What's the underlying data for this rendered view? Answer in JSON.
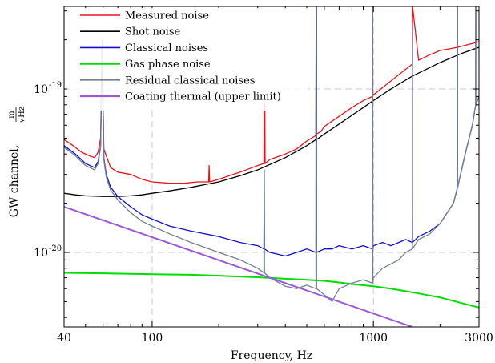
{
  "chart_data": {
    "type": "line",
    "xlabel": "Frequency, Hz",
    "ylabel": "GW channel, m/√Hz",
    "ylabel_main": "GW channel, ",
    "ylabel_unit_num": "m",
    "ylabel_unit_den": "√Hz",
    "x_scale": "log",
    "y_scale": "log",
    "xlim": [
      40,
      3000
    ],
    "ylim": [
      3.5e-21,
      3.2e-19
    ],
    "xticks": [
      {
        "value": 40,
        "label": "40"
      },
      {
        "value": 100,
        "label": "100"
      },
      {
        "value": 1000,
        "label": "1000"
      },
      {
        "value": 3000,
        "label": "3000"
      }
    ],
    "yticks": [
      {
        "value": 1e-20,
        "label_base": "10",
        "label_exp": "-20"
      },
      {
        "value": 1e-19,
        "label_base": "10",
        "label_exp": "-19"
      }
    ],
    "grid": "dashed, major decades",
    "legend_position": "top-left",
    "series": [
      {
        "name": "Measured noise",
        "color": "#e8141b",
        "x": [
          40,
          44,
          48,
          52,
          55,
          57,
          58.5,
          59.5,
          60.5,
          62,
          65,
          70,
          80,
          90,
          100,
          120,
          140,
          160,
          180,
          181,
          182,
          200,
          250,
          300,
          320,
          321,
          322,
          323,
          324,
          340,
          400,
          450,
          500,
          550,
          551,
          552,
          553,
          554,
          580,
          600,
          700,
          800,
          900,
          990,
          991,
          992,
          993,
          994,
          1000,
          1050,
          1100,
          1200,
          1300,
          1400,
          1500,
          1501,
          1502,
          1503,
          1600,
          1800,
          2000,
          2300,
          2400,
          2401,
          2402,
          2600,
          2800,
          2900,
          2901,
          2902,
          3000
        ],
        "y": [
          4.9e-20,
          4.5e-20,
          4.1e-20,
          3.9e-20,
          3.8e-20,
          4.1e-20,
          5e-20,
          2e-19,
          4.3e-20,
          3.9e-20,
          3.3e-20,
          3.1e-20,
          3e-20,
          2.8e-20,
          2.7e-20,
          2.65e-20,
          2.65e-20,
          2.7e-20,
          2.7e-20,
          3.4e-20,
          2.7e-20,
          2.8e-20,
          3.1e-20,
          3.4e-20,
          3.5e-20,
          9e-20,
          3.5e-20,
          8e-20,
          3.5e-20,
          3.7e-20,
          4e-20,
          4.3e-20,
          4.8e-20,
          5.2e-20,
          3.2e-19,
          3.2e-19,
          3.2e-19,
          5.3e-20,
          5.5e-20,
          5.9e-20,
          6.8e-20,
          7.7e-20,
          8.5e-20,
          9e-20,
          3.2e-19,
          3.2e-19,
          3.2e-19,
          9.1e-20,
          9.2e-20,
          9.7e-20,
          1.02e-19,
          1.12e-19,
          1.22e-19,
          1.32e-19,
          1.42e-19,
          3.2e-19,
          1.42e-19,
          3.2e-19,
          1.5e-19,
          1.62e-19,
          1.72e-19,
          1.78e-19,
          1.8e-19,
          3.2e-19,
          1.8e-19,
          1.85e-19,
          1.9e-19,
          1.92e-19,
          3.2e-19,
          1.92e-19,
          1.95e-19
        ]
      },
      {
        "name": "Shot noise",
        "color": "#000000",
        "x": [
          40,
          45,
          50,
          60,
          70,
          80,
          90,
          100,
          120,
          150,
          200,
          250,
          300,
          400,
          500,
          550,
          551,
          552,
          553,
          554,
          600,
          700,
          800,
          900,
          1000,
          1200,
          1500,
          2000,
          2500,
          3000
        ],
        "y": [
          2.3e-20,
          2.25e-20,
          2.22e-20,
          2.2e-20,
          2.2e-20,
          2.22e-20,
          2.25e-20,
          2.3e-20,
          2.38e-20,
          2.5e-20,
          2.7e-20,
          2.95e-20,
          3.2e-20,
          3.8e-20,
          4.5e-20,
          4.9e-20,
          3.2e-19,
          3.2e-19,
          3.2e-19,
          4.9e-20,
          5.3e-20,
          6.1e-20,
          6.9e-20,
          7.7e-20,
          8.5e-20,
          1e-19,
          1.2e-19,
          1.45e-19,
          1.65e-19,
          1.8e-19
        ]
      },
      {
        "name": "Classical noises",
        "color": "#1010cc",
        "x": [
          40,
          45,
          50,
          55,
          57,
          58.5,
          59.5,
          60.5,
          62,
          65,
          70,
          80,
          90,
          100,
          120,
          150,
          200,
          250,
          300,
          320,
          321,
          322,
          340,
          400,
          450,
          500,
          550,
          551,
          552,
          553,
          554,
          600,
          650,
          700,
          800,
          900,
          990,
          991,
          992,
          993,
          994,
          1000,
          1100,
          1200,
          1300,
          1400,
          1500,
          1501,
          1502,
          1600,
          1800,
          2000,
          2300,
          2400,
          2401,
          2402,
          2600,
          2800,
          2900,
          2901,
          2902,
          3000
        ],
        "y": [
          4.5e-20,
          4e-20,
          3.5e-20,
          3.3e-20,
          3.6e-20,
          4.5e-20,
          1.9e-19,
          3.8e-20,
          3e-20,
          2.5e-20,
          2.2e-20,
          1.9e-20,
          1.7e-20,
          1.6e-20,
          1.45e-20,
          1.35e-20,
          1.25e-20,
          1.15e-20,
          1.1e-20,
          1.05e-20,
          3.2e-20,
          1.05e-20,
          1e-20,
          9.5e-21,
          1e-20,
          1.05e-20,
          1e-20,
          3.2e-19,
          3.2e-19,
          3.2e-19,
          1e-20,
          1.05e-20,
          1.05e-20,
          1.1e-20,
          1.05e-20,
          1.1e-20,
          1.05e-20,
          3.2e-19,
          3.2e-19,
          3.2e-19,
          1.05e-20,
          1.1e-20,
          1.15e-20,
          1.1e-20,
          1.15e-20,
          1.2e-20,
          1.15e-20,
          2.5e-19,
          1.15e-20,
          1.25e-20,
          1.35e-20,
          1.5e-20,
          2e-20,
          2.5e-20,
          3.2e-19,
          2.5e-20,
          4e-20,
          6e-20,
          8e-20,
          3.2e-19,
          8e-20,
          9e-20
        ]
      },
      {
        "name": "Gas phase noise",
        "color": "#00dd00",
        "x": [
          40,
          60,
          80,
          100,
          150,
          200,
          300,
          400,
          500,
          600,
          700,
          800,
          1000,
          1200,
          1500,
          2000,
          2500,
          3000
        ],
        "y": [
          7.5e-21,
          7.45e-21,
          7.4e-21,
          7.35e-21,
          7.3e-21,
          7.2e-21,
          7.05e-21,
          6.9e-21,
          6.8e-21,
          6.7e-21,
          6.55e-21,
          6.4e-21,
          6.2e-21,
          6e-21,
          5.7e-21,
          5.3e-21,
          4.9e-21,
          4.6e-21
        ]
      },
      {
        "name": "Residual classical noises",
        "color": "#708090",
        "x": [
          40,
          45,
          50,
          55,
          57,
          58.5,
          59.5,
          60.5,
          62,
          65,
          70,
          80,
          90,
          100,
          120,
          150,
          200,
          250,
          300,
          320,
          321,
          322,
          340,
          400,
          450,
          500,
          550,
          551,
          552,
          553,
          554,
          600,
          650,
          700,
          800,
          900,
          990,
          991,
          992,
          993,
          994,
          1000,
          1100,
          1200,
          1300,
          1400,
          1500,
          1501,
          1502,
          1600,
          1800,
          2000,
          2300,
          2400,
          2401,
          2402,
          2600,
          2800,
          2900,
          2901,
          2902,
          3000
        ],
        "y": [
          4.4e-20,
          3.9e-20,
          3.4e-20,
          3.2e-20,
          3.5e-20,
          4.4e-20,
          2e-19,
          3.7e-20,
          2.9e-20,
          2.4e-20,
          2.1e-20,
          1.75e-20,
          1.55e-20,
          1.45e-20,
          1.3e-20,
          1.15e-20,
          1e-20,
          9e-21,
          8e-21,
          7.5e-21,
          3.2e-20,
          7.5e-21,
          7e-21,
          6.2e-21,
          6e-21,
          6.3e-21,
          6e-21,
          3.2e-19,
          3.2e-19,
          3.2e-19,
          6e-21,
          5.5e-21,
          5e-21,
          6e-21,
          6.5e-21,
          6.8e-21,
          6.5e-21,
          3.2e-19,
          3.2e-19,
          3.2e-19,
          6.5e-21,
          7e-21,
          8e-21,
          8.5e-21,
          9e-21,
          1e-20,
          1.05e-20,
          2.5e-19,
          1.05e-20,
          1.2e-20,
          1.3e-20,
          1.5e-20,
          2e-20,
          2.5e-20,
          3.2e-19,
          2.5e-20,
          4e-20,
          6e-20,
          8e-20,
          3.2e-19,
          8e-20,
          9e-20
        ]
      },
      {
        "name": "Coating thermal (upper limit)",
        "color": "#9b59d9",
        "x": [
          40,
          1500
        ],
        "y": [
          1.9e-20,
          3.5e-21
        ]
      }
    ]
  }
}
